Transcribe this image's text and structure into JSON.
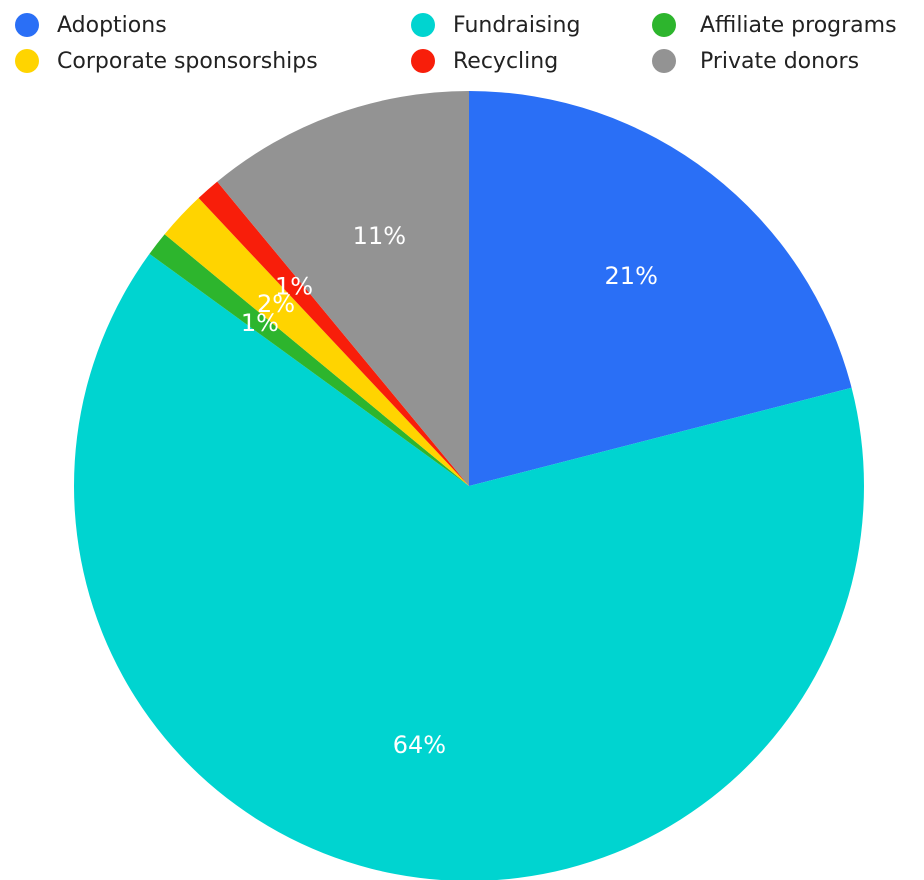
{
  "chart_data": {
    "type": "pie",
    "categories": [
      "Adoptions",
      "Fundraising",
      "Affiliate programs",
      "Corporate sponsorships",
      "Recycling",
      "Private donors"
    ],
    "values": [
      21,
      64,
      1,
      2,
      1,
      11
    ],
    "value_labels": [
      "21%",
      "64%",
      "1%",
      "2%",
      "1%",
      "11%"
    ],
    "colors": [
      "#2a6ff6",
      "#00d4d0",
      "#2db52d",
      "#ffd400",
      "#f81e0a",
      "#939393"
    ],
    "legend": "top"
  }
}
